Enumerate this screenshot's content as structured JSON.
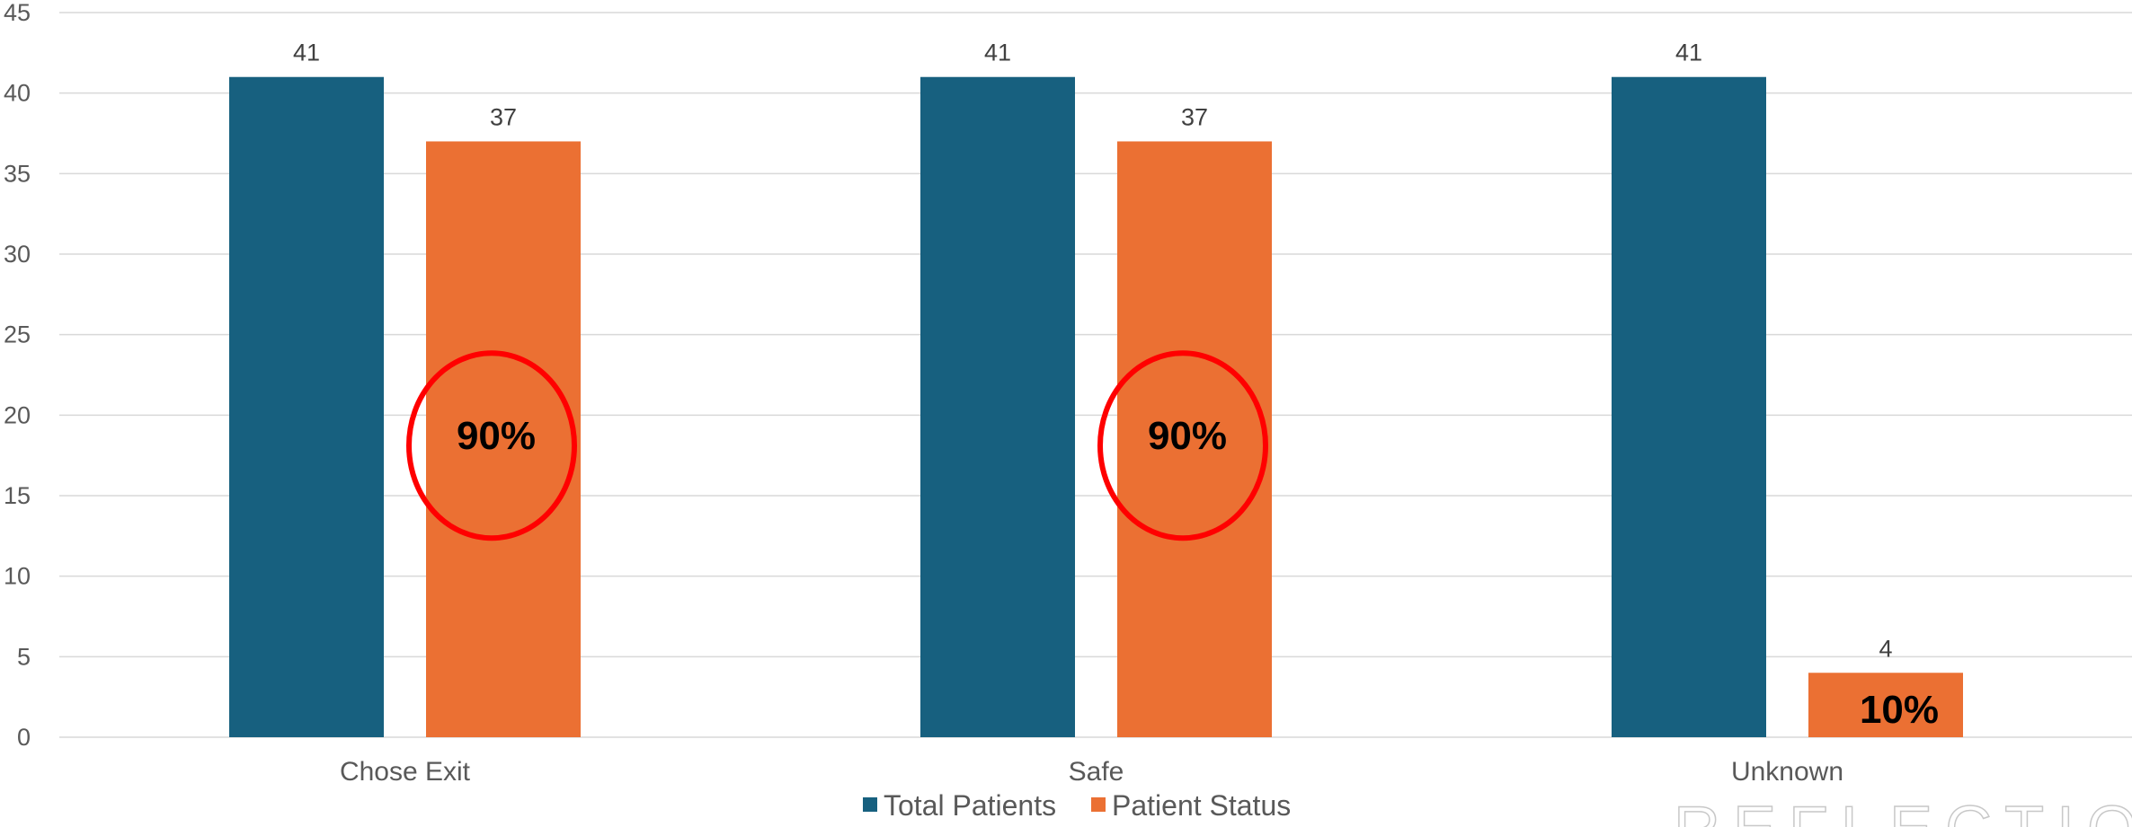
{
  "chart_data": {
    "type": "bar",
    "categories": [
      "Chose Exit",
      "Safe",
      "Unknown"
    ],
    "series": [
      {
        "name": "Total Patients",
        "color": "#17607F",
        "values": [
          41,
          41,
          41
        ]
      },
      {
        "name": "Patient Status",
        "color": "#EB7033",
        "values": [
          37,
          37,
          4
        ]
      }
    ],
    "ylim": [
      0,
      45
    ],
    "yticks": [
      0,
      5,
      10,
      15,
      20,
      25,
      30,
      35,
      40,
      45
    ],
    "grid": true,
    "legend": "bottom-center",
    "annotations": [
      {
        "category": "Chose Exit",
        "series": "Patient Status",
        "text": "90%",
        "circled": true
      },
      {
        "category": "Safe",
        "series": "Patient Status",
        "text": "90%",
        "circled": true
      },
      {
        "category": "Unknown",
        "series": "Patient Status",
        "text": "10%",
        "circled": false
      }
    ],
    "annotation_circle_color": "#FF0000",
    "gridline_color": "#D9D9D9"
  },
  "watermark": "REFLECTION"
}
